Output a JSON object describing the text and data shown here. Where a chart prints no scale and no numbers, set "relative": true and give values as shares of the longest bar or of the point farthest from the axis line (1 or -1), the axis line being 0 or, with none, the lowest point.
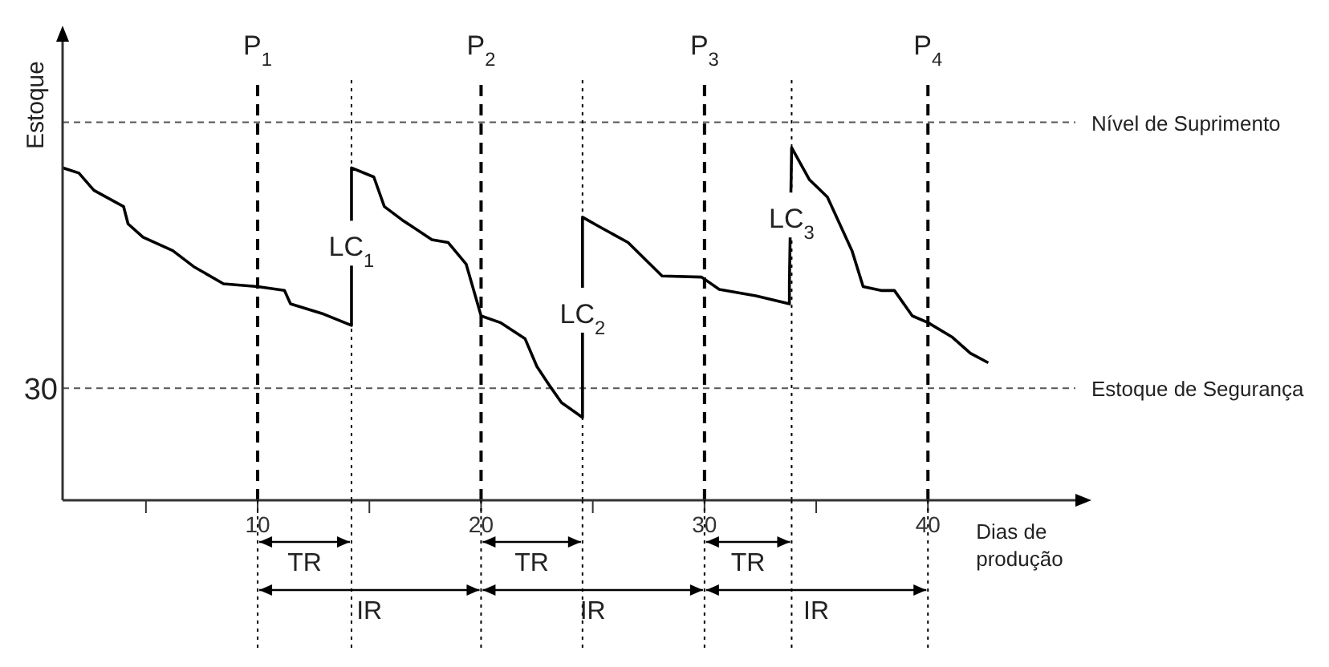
{
  "chart_data": {
    "type": "line",
    "relative": true,
    "xlabel": "Dias de produção",
    "ylabel": "Estoque",
    "x": [
      1.27,
      2.0,
      2.67,
      4.0,
      4.2,
      4.87,
      6.2,
      7.13,
      8.47,
      10,
      11.2,
      11.47,
      12.87,
      14.2,
      14.2,
      15.2,
      15.67,
      16.47,
      17.8,
      18.53,
      19.33,
      20,
      20.86,
      21.97,
      22.5,
      23.1,
      23.6,
      24.54,
      24.54,
      25.26,
      26.58,
      28.1,
      29.87,
      30.66,
      32.3,
      33.8,
      33.8,
      33.9,
      34.7,
      35.5,
      36.6,
      37.1,
      37.9,
      38.5,
      39.3,
      40,
      41.1,
      41.9,
      42.7
    ],
    "series": [
      {
        "color": "#000000",
        "values": [
          0.943,
          0.928,
          0.879,
          0.833,
          0.784,
          0.746,
          0.708,
          0.663,
          0.614,
          0.606,
          0.595,
          0.557,
          0.53,
          0.496,
          0.943,
          0.917,
          0.833,
          0.795,
          0.739,
          0.731,
          0.67,
          0.523,
          0.504,
          0.458,
          0.379,
          0.322,
          0.277,
          0.235,
          0.803,
          0.777,
          0.731,
          0.636,
          0.633,
          0.598,
          0.58,
          0.557,
          0.617,
          1.0,
          0.909,
          0.86,
          0.708,
          0.606,
          0.595,
          0.595,
          0.523,
          0.504,
          0.462,
          0.417,
          0.39
        ]
      }
    ],
    "xlim": [
      1.27,
      46.6
    ],
    "xticks": [
      {
        "value": 5,
        "label": null
      },
      10,
      {
        "value": 15,
        "label": null
      },
      20,
      {
        "value": 25,
        "label": null
      },
      30,
      {
        "value": 35,
        "label": null
      },
      40
    ],
    "marker": "none",
    "line_style": "solid",
    "ref_lines": [
      {
        "axis": "y",
        "value": 1.072,
        "label": "Nível de Suprimento",
        "line_style": "dashed",
        "color": "#555555"
      },
      {
        "axis": "y",
        "value": 0.318,
        "label": "Estoque de Segurança",
        "line_style": "dashed",
        "color": "#555555"
      },
      {
        "axis": "x",
        "value": 10,
        "label": "P$_{1}$",
        "line_style": "dashed",
        "color": "#000000"
      },
      {
        "axis": "x",
        "value": 20,
        "label": "P$_{2}$",
        "line_style": "dashed",
        "color": "#000000"
      },
      {
        "axis": "x",
        "value": 30,
        "label": "P$_{3}$",
        "line_style": "dashed",
        "color": "#000000"
      },
      {
        "axis": "x",
        "value": 40,
        "label": "P$_{4}$",
        "line_style": "dashed",
        "color": "#000000"
      },
      {
        "axis": "x",
        "value": 14.2,
        "line_style": "dotted",
        "color": "#000000"
      },
      {
        "axis": "x",
        "value": 24.54,
        "line_style": "dotted",
        "color": "#000000"
      },
      {
        "axis": "x",
        "value": 33.9,
        "line_style": "dotted",
        "color": "#000000"
      }
    ],
    "annotations": [
      "30",
      {
        "text": "LC$_{1}$",
        "x": 14.2,
        "y": 0.72
      },
      {
        "text": "LC$_{2}$",
        "x": 24.54,
        "y": 0.53
      },
      {
        "text": "LC$_{3}$",
        "x": 33.9,
        "y": 0.8
      },
      "TR",
      "TR",
      "TR",
      "IR",
      "IR",
      "IR"
    ]
  }
}
